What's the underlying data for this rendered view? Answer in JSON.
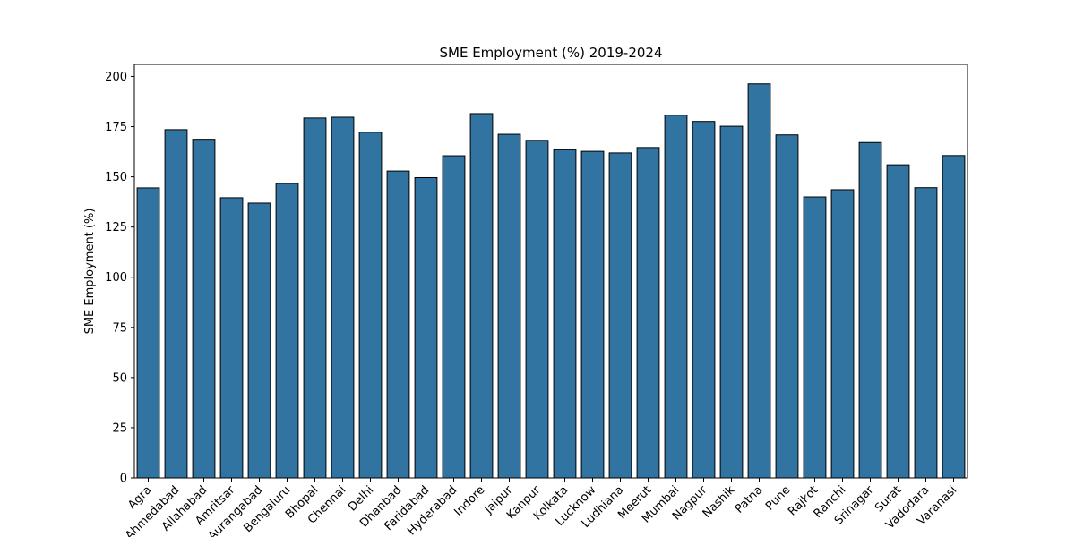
{
  "chart_data": {
    "type": "bar",
    "title": "SME Employment (%) 2019-2024",
    "xlabel": "",
    "ylabel": "SME Employment (%)",
    "ylim": [
      0,
      206
    ],
    "yticks": [
      0,
      25,
      50,
      75,
      100,
      125,
      150,
      175,
      200
    ],
    "grid": false,
    "bar_color": "#3274a1",
    "edge_color": "#000000",
    "categories": [
      "Agra",
      "Ahmedabad",
      "Allahabad",
      "Amritsar",
      "Aurangabad",
      "Bengaluru",
      "Bhopal",
      "Chennai",
      "Delhi",
      "Dhanbad",
      "Faridabad",
      "Hyderabad",
      "Indore",
      "Jaipur",
      "Kanpur",
      "Kolkata",
      "Lucknow",
      "Ludhiana",
      "Meerut",
      "Mumbai",
      "Nagpur",
      "Nashik",
      "Patna",
      "Pune",
      "Rajkot",
      "Ranchi",
      "Srinagar",
      "Surat",
      "Vadodara",
      "Varanasi"
    ],
    "values": [
      144.5,
      173.5,
      168.7,
      139.6,
      136.9,
      146.7,
      179.3,
      179.7,
      172.2,
      152.9,
      149.6,
      160.5,
      181.5,
      171.2,
      168.2,
      163.5,
      162.7,
      161.9,
      164.6,
      180.7,
      177.6,
      175.2,
      196.3,
      170.9,
      140.0,
      143.6,
      167.1,
      156.0,
      144.6,
      160.6
    ]
  }
}
